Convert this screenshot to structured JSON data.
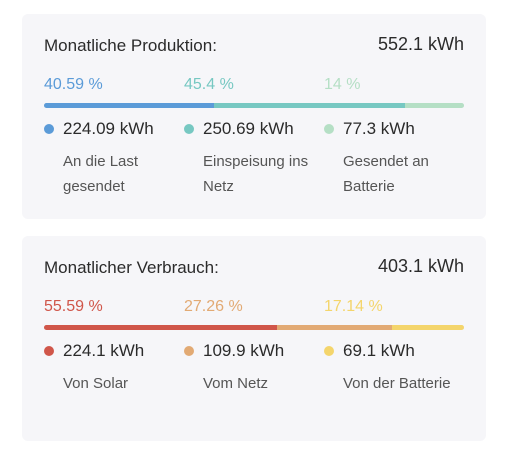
{
  "production": {
    "title": "Monatliche Produktion:",
    "total": "552.1 kWh",
    "items": [
      {
        "pct": "40.59 %",
        "fraction": 0.4059,
        "value": "224.09 kWh",
        "desc": "An die Last gesendet",
        "color": "#5b9bd8"
      },
      {
        "pct": "45.4 %",
        "fraction": 0.454,
        "value": "250.69 kWh",
        "desc": "Einspeisung ins Netz",
        "color": "#77c8c2"
      },
      {
        "pct": "14 %",
        "fraction": 0.14,
        "value": "77.3 kWh",
        "desc": "Gesendet an Batterie",
        "color": "#b5dfc5"
      }
    ]
  },
  "consumption": {
    "title": "Monatlicher Verbrauch:",
    "total": "403.1 kWh",
    "items": [
      {
        "pct": "55.59 %",
        "fraction": 0.5559,
        "value": "224.1 kWh",
        "desc": "Von Solar",
        "color": "#d0564a"
      },
      {
        "pct": "27.26 %",
        "fraction": 0.2726,
        "value": "109.9 kWh",
        "desc": "Vom Netz",
        "color": "#e2aa74"
      },
      {
        "pct": "17.14 %",
        "fraction": 0.1714,
        "value": "69.1 kWh",
        "desc": "Von der Batterie",
        "color": "#f4d56c"
      }
    ]
  }
}
